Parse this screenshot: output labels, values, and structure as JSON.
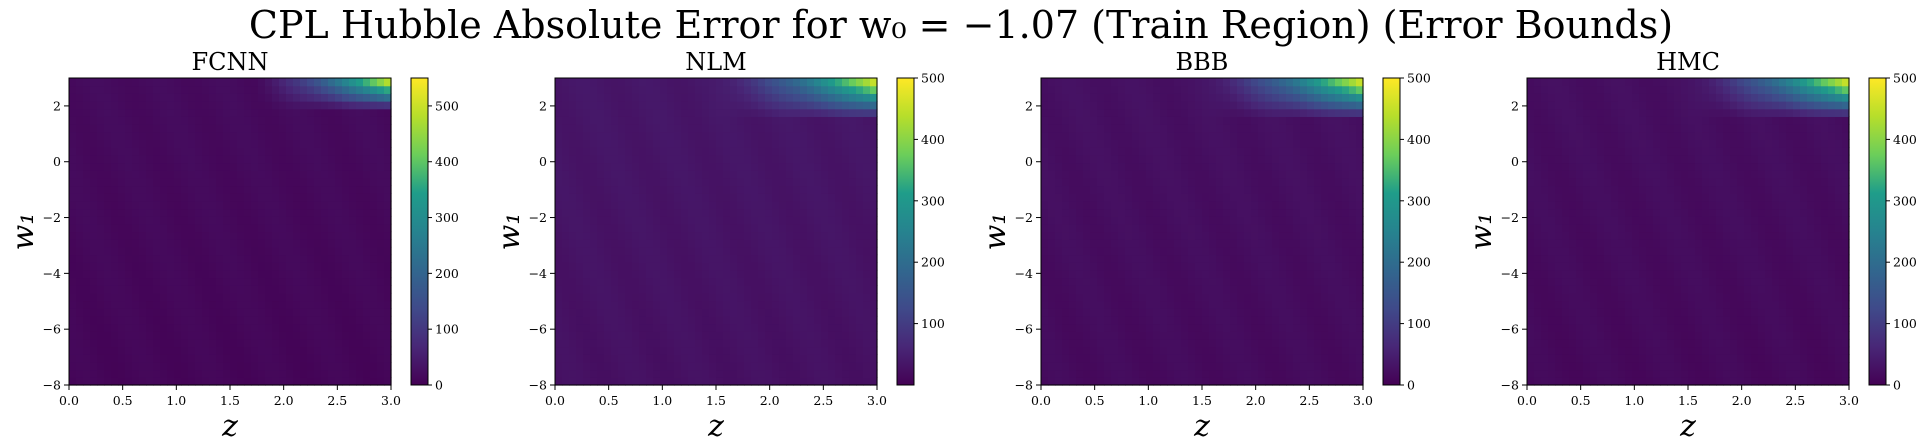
{
  "figure": {
    "title": "CPL Hubble Absolute Error for w₀ = −1.07 (Train Region) (Error Bounds)"
  },
  "colors": {
    "viridis": [
      "#440154",
      "#482777",
      "#3f4a8a",
      "#31678e",
      "#26838f",
      "#1f9d8a",
      "#6cce5a",
      "#b6de2b",
      "#fee825"
    ]
  },
  "chart_data": [
    {
      "type": "heatmap",
      "title": "FCNN",
      "xlabel": "z",
      "ylabel": "w₁",
      "xlim": [
        0,
        3.0
      ],
      "ylim": [
        -8,
        3
      ],
      "xticks": [
        "0.0",
        "0.5",
        "1.0",
        "1.5",
        "2.0",
        "2.5",
        "3.0"
      ],
      "yticks": [
        "−8",
        "−6",
        "−4",
        "−2",
        "0",
        "2"
      ],
      "colorbar": {
        "min": 0,
        "max": 550,
        "ticks": [
          "0",
          "100",
          "200",
          "300",
          "400",
          "500"
        ]
      },
      "field": {
        "base": 8,
        "peak": 550,
        "corner_z": [
          1.7,
          3.0
        ],
        "corner_w1": [
          1.9,
          3.0
        ]
      }
    },
    {
      "type": "heatmap",
      "title": "NLM",
      "xlabel": "z",
      "ylabel": "w₁",
      "xlim": [
        0,
        3.0
      ],
      "ylim": [
        -8,
        3
      ],
      "xticks": [
        "0.0",
        "0.5",
        "1.0",
        "1.5",
        "2.0",
        "2.5",
        "3.0"
      ],
      "yticks": [
        "−8",
        "−6",
        "−4",
        "−2",
        "0",
        "2"
      ],
      "colorbar": {
        "min": 0,
        "max": 500,
        "ticks": [
          "100",
          "200",
          "300",
          "400",
          "500"
        ]
      },
      "field": {
        "base": 25,
        "peak": 500,
        "corner_z": [
          1.4,
          3.0
        ],
        "corner_w1": [
          1.6,
          3.0
        ]
      }
    },
    {
      "type": "heatmap",
      "title": "BBB",
      "xlabel": "z",
      "ylabel": "w₁",
      "xlim": [
        0,
        3.0
      ],
      "ylim": [
        -8,
        3
      ],
      "xticks": [
        "0.0",
        "0.5",
        "1.0",
        "1.5",
        "2.0",
        "2.5",
        "3.0"
      ],
      "yticks": [
        "−8",
        "−6",
        "−4",
        "−2",
        "0",
        "2"
      ],
      "colorbar": {
        "min": 0,
        "max": 500,
        "ticks": [
          "0",
          "100",
          "200",
          "300",
          "400",
          "500"
        ]
      },
      "field": {
        "base": 15,
        "peak": 500,
        "corner_z": [
          1.4,
          3.0
        ],
        "corner_w1": [
          1.6,
          3.0
        ]
      }
    },
    {
      "type": "heatmap",
      "title": "HMC",
      "xlabel": "z",
      "ylabel": "w₁",
      "xlim": [
        0,
        3.0
      ],
      "ylim": [
        -8,
        3
      ],
      "xticks": [
        "0.0",
        "0.5",
        "1.0",
        "1.5",
        "2.0",
        "2.5",
        "3.0"
      ],
      "yticks": [
        "−8",
        "−6",
        "−4",
        "−2",
        "0",
        "2"
      ],
      "colorbar": {
        "min": 0,
        "max": 500,
        "ticks": [
          "0",
          "100",
          "200",
          "300",
          "400",
          "500"
        ]
      },
      "field": {
        "base": 12,
        "peak": 500,
        "corner_z": [
          1.4,
          3.0
        ],
        "corner_w1": [
          1.6,
          3.0
        ]
      }
    }
  ]
}
